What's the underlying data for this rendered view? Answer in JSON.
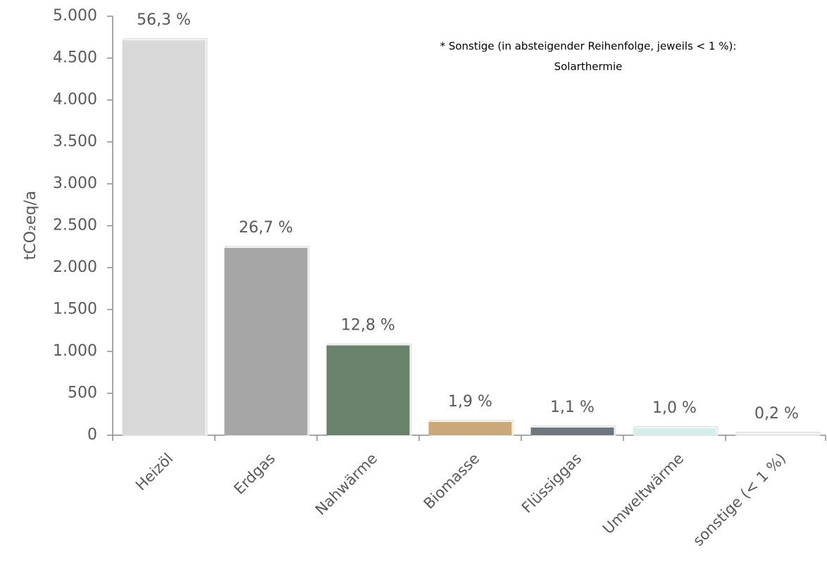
{
  "chart_data": {
    "type": "bar",
    "y_label": "tCO₂eq/a",
    "annotation": [
      "* Sonstige (in absteigender Reihenfolge, jeweils < 1 %):",
      "Solarthermie"
    ],
    "categories": [
      "Heizöl",
      "Erdgas",
      "Nahwärme",
      "Biomasse",
      "Flüssiggas",
      "Umweltwärme",
      "sonstige (< 1 %)"
    ],
    "values": [
      4714,
      2236,
      1072,
      159,
      92,
      84,
      17
    ],
    "data_labels": [
      "56,3 %",
      "26,7 %",
      "12,8 %",
      "1,9 %",
      "1,1 %",
      "1,0 %",
      "0,2 %"
    ],
    "colors": [
      "#d9d9d9",
      "#a6a6a6",
      "#6a826b",
      "#c9a97a",
      "#6f7680",
      "#d6eeeb",
      "#e9e9e9"
    ],
    "ylim": [
      0,
      5000
    ],
    "yticks": [
      0,
      500,
      {
        "value": 1000,
        "label": "1.000"
      },
      {
        "value": 1500,
        "label": "1.500"
      },
      {
        "value": 2000,
        "label": "2.000"
      },
      {
        "value": 2500,
        "label": "2.500"
      },
      {
        "value": 3000,
        "label": "3.000"
      },
      {
        "value": 3500,
        "label": "3.500"
      },
      {
        "value": 4000,
        "label": "4.000"
      },
      {
        "value": 4500,
        "label": "4.500"
      },
      {
        "value": 5000,
        "label": "5.000"
      }
    ],
    "grid": false
  }
}
